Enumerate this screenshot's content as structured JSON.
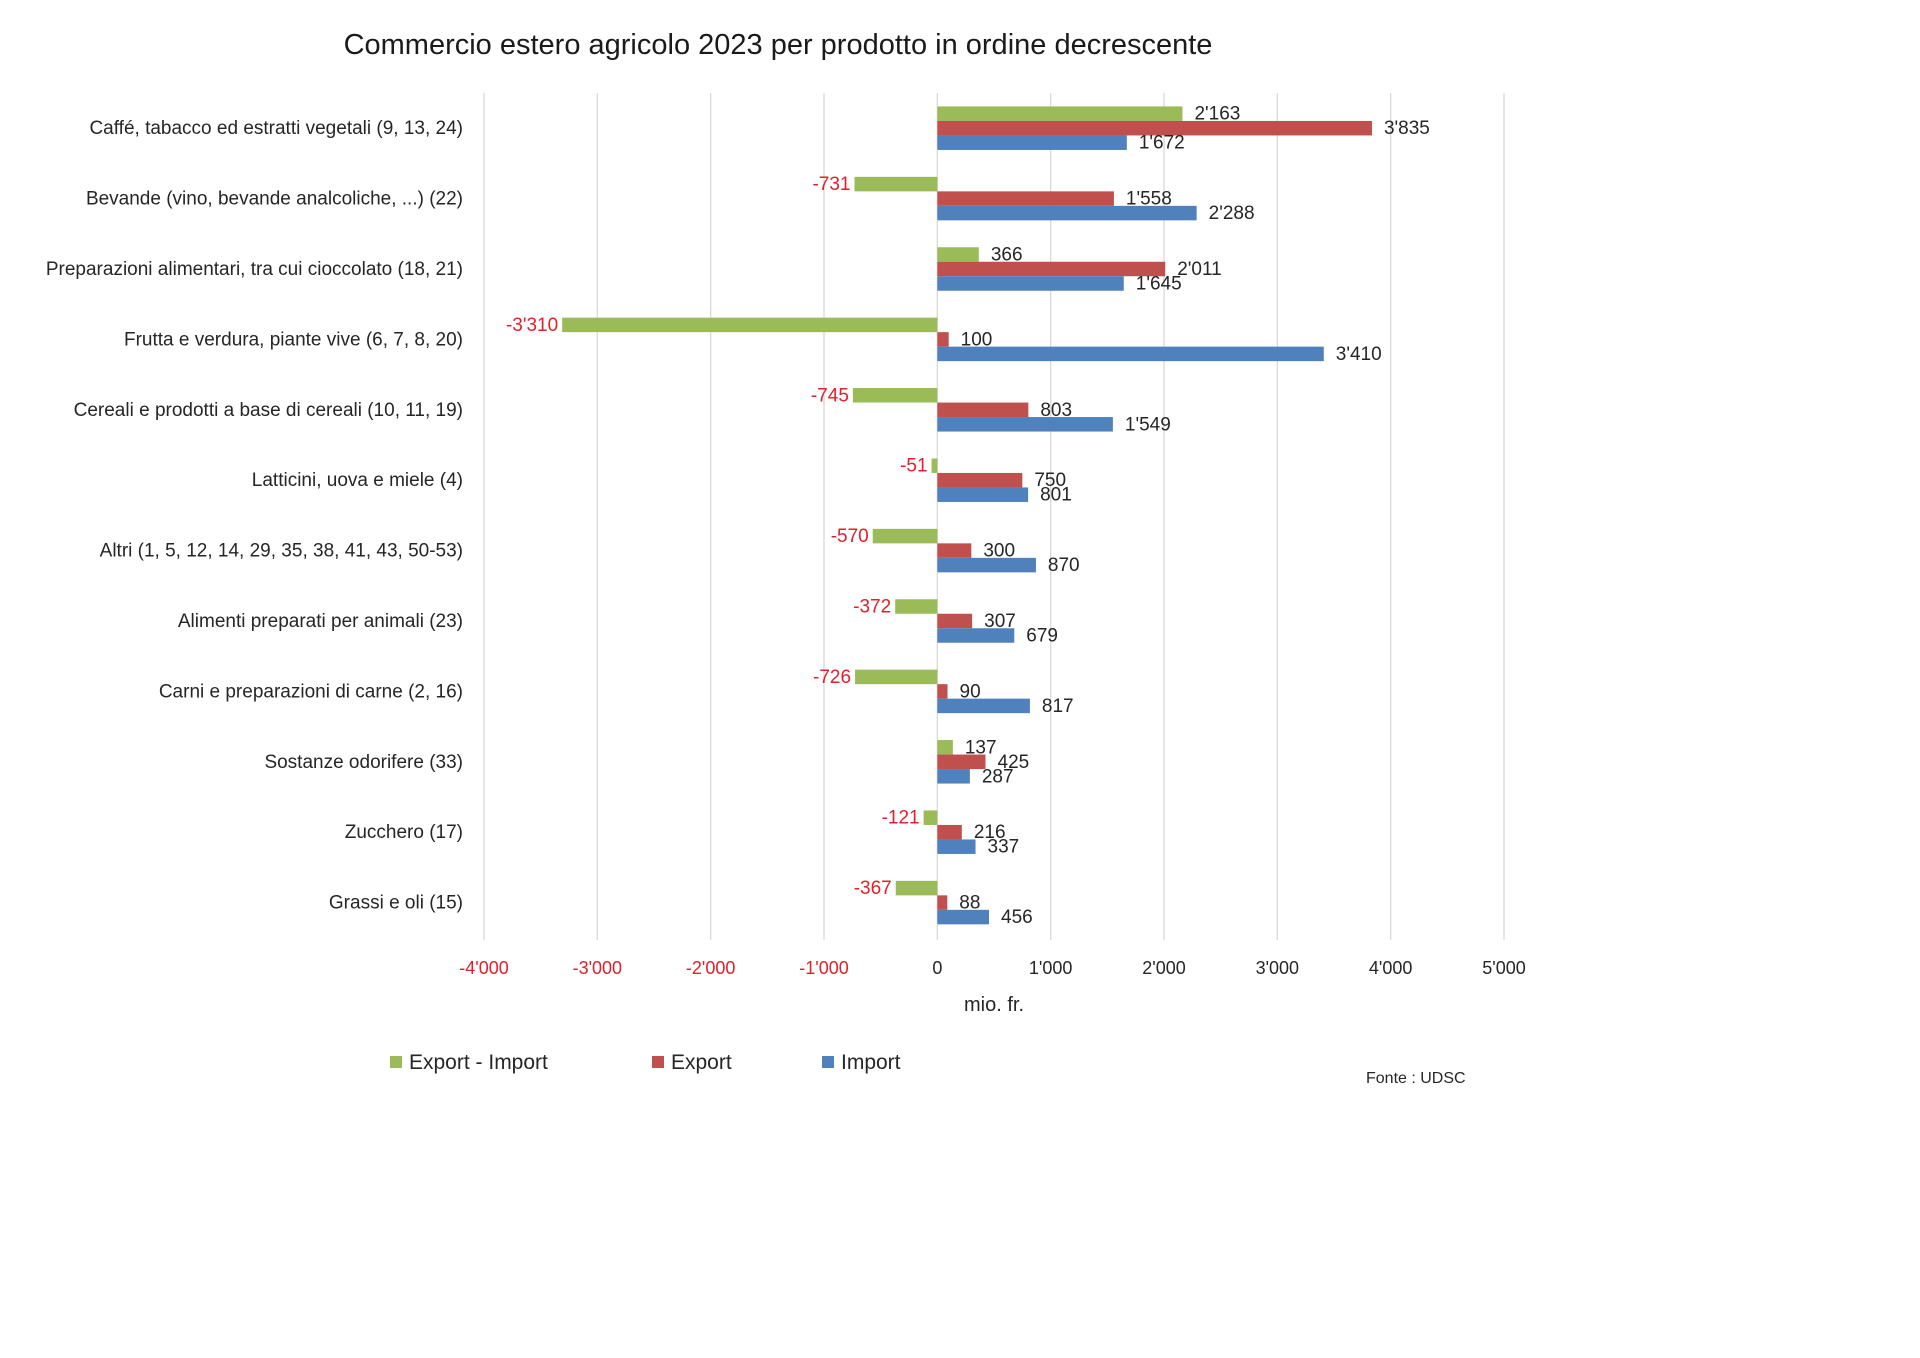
{
  "chart_data": {
    "type": "bar",
    "orientation": "horizontal",
    "title": "Commercio estero agricolo 2023 per prodotto in ordine decrescente",
    "xlabel": "mio. fr.",
    "ylabel": "",
    "xlim": [
      -4000,
      5000
    ],
    "xticks": [
      -4000,
      -3000,
      -2000,
      -1000,
      0,
      1000,
      2000,
      3000,
      4000,
      5000
    ],
    "xtick_labels": [
      "-4'000",
      "-3'000",
      "-2'000",
      "-1'000",
      "0",
      "1'000",
      "2'000",
      "3'000",
      "4'000",
      "5'000"
    ],
    "grid": "vertical",
    "legend_position": "bottom",
    "categories": [
      "Caffé, tabacco ed estratti vegetali (9, 13, 24)",
      "Bevande (vino, bevande analcoliche, ...) (22)",
      "Preparazioni alimentari, tra cui cioccolato (18, 21)",
      "Frutta e verdura, piante vive (6, 7, 8, 20)",
      "Cereali e prodotti a base di cereali (10, 11, 19)",
      "Latticini, uova e miele (4)",
      "Altri (1, 5, 12, 14, 29, 35, 38, 41, 43, 50-53)",
      "Alimenti preparati per animali (23)",
      "Carni e preparazioni di carne (2, 16)",
      "Sostanze odorifere (33)",
      "Zucchero (17)",
      "Grassi e oli (15)"
    ],
    "series": [
      {
        "name": "Export - Import",
        "color": "#9bbb59",
        "values": [
          2163,
          -731,
          366,
          -3310,
          -745,
          -51,
          -570,
          -372,
          -726,
          137,
          -121,
          -367
        ],
        "labels": [
          "2'163",
          "-731",
          "366",
          "-3'310",
          "-745",
          "-51",
          "-570",
          "-372",
          "-726",
          "137",
          "-121",
          "-367"
        ]
      },
      {
        "name": "Export",
        "color": "#c0504d",
        "values": [
          3835,
          1558,
          2011,
          100,
          803,
          750,
          300,
          307,
          90,
          425,
          216,
          88
        ],
        "labels": [
          "3'835",
          "1'558",
          "2'011",
          "100",
          "803",
          "750",
          "300",
          "307",
          "90",
          "425",
          "216",
          "88"
        ]
      },
      {
        "name": "Import",
        "color": "#4f81bd",
        "values": [
          1672,
          2288,
          1645,
          3410,
          1549,
          801,
          870,
          679,
          817,
          287,
          337,
          456
        ],
        "labels": [
          "1'672",
          "2'288",
          "1'645",
          "3'410",
          "1'549",
          "801",
          "870",
          "679",
          "817",
          "287",
          "337",
          "456"
        ]
      }
    ],
    "negative_label_color": "#e0202a",
    "positive_label_color": "#262626",
    "source": "Fonte : UDSC"
  }
}
